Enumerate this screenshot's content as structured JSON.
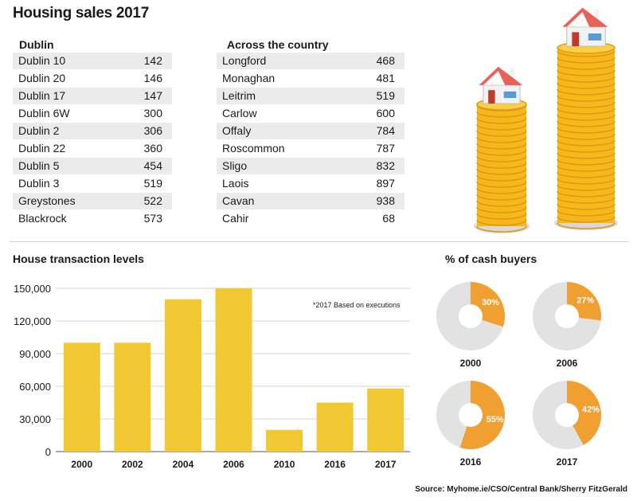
{
  "title": "Housing sales 2017",
  "dublin": {
    "heading": "Dublin",
    "rows": [
      {
        "name": "Dublin 10",
        "value": "142"
      },
      {
        "name": "Dublin 20",
        "value": "146"
      },
      {
        "name": "Dublin 17",
        "value": "147"
      },
      {
        "name": "Dublin 6W",
        "value": "300"
      },
      {
        "name": "Dublin 2",
        "value": "306"
      },
      {
        "name": "Dublin 22",
        "value": "360"
      },
      {
        "name": "Dublin 5",
        "value": "454"
      },
      {
        "name": "Dublin 3",
        "value": "519"
      },
      {
        "name": "Greystones",
        "value": "522"
      },
      {
        "name": "Blackrock",
        "value": "573"
      }
    ]
  },
  "country": {
    "heading": "Across the country",
    "rows": [
      {
        "name": "Longford",
        "value": "468"
      },
      {
        "name": "Monaghan",
        "value": "481"
      },
      {
        "name": "Leitrim",
        "value": "519"
      },
      {
        "name": "Carlow",
        "value": "600"
      },
      {
        "name": "Offaly",
        "value": "784"
      },
      {
        "name": "Roscommon",
        "value": "787"
      },
      {
        "name": "Sligo",
        "value": "832"
      },
      {
        "name": "Laois",
        "value": "897"
      },
      {
        "name": "Cavan",
        "value": "938"
      },
      {
        "name": "Cahir",
        "value": "68"
      }
    ]
  },
  "colors": {
    "bar": "#f2c832",
    "cash": "#f0a030",
    "ring_bg": "#e2e2e2",
    "coin": "#f5b818",
    "coin_edge": "#e0971a",
    "house_roof": "#e8625a",
    "house_wall": "#f2f2f2",
    "window": "#5b9bd5"
  },
  "chart_data": [
    {
      "type": "bar",
      "title": "House transaction levels",
      "categories": [
        "2000",
        "2002",
        "2004",
        "2006",
        "2010",
        "2016",
        "2017"
      ],
      "values": [
        100000,
        100000,
        140000,
        150000,
        20000,
        45000,
        58000
      ],
      "yticks": [
        "150,000",
        "120,000",
        "90,000",
        "60,000",
        "30,000",
        "0"
      ],
      "ylim": [
        0,
        150000
      ],
      "grid": true,
      "annotation": "*2017 Based on executions"
    },
    {
      "type": "pie",
      "title": "% of cash buyers",
      "donuts": [
        {
          "year": "2000",
          "value": 30,
          "label": "30%"
        },
        {
          "year": "2006",
          "value": 27,
          "label": "27%"
        },
        {
          "year": "2016",
          "value": 55,
          "label": "55%"
        },
        {
          "year": "2017",
          "value": 42,
          "label": "42%"
        }
      ]
    }
  ],
  "source": "Source: Myhome.ie/CSO/Central Bank/Sherry FitzGerald"
}
